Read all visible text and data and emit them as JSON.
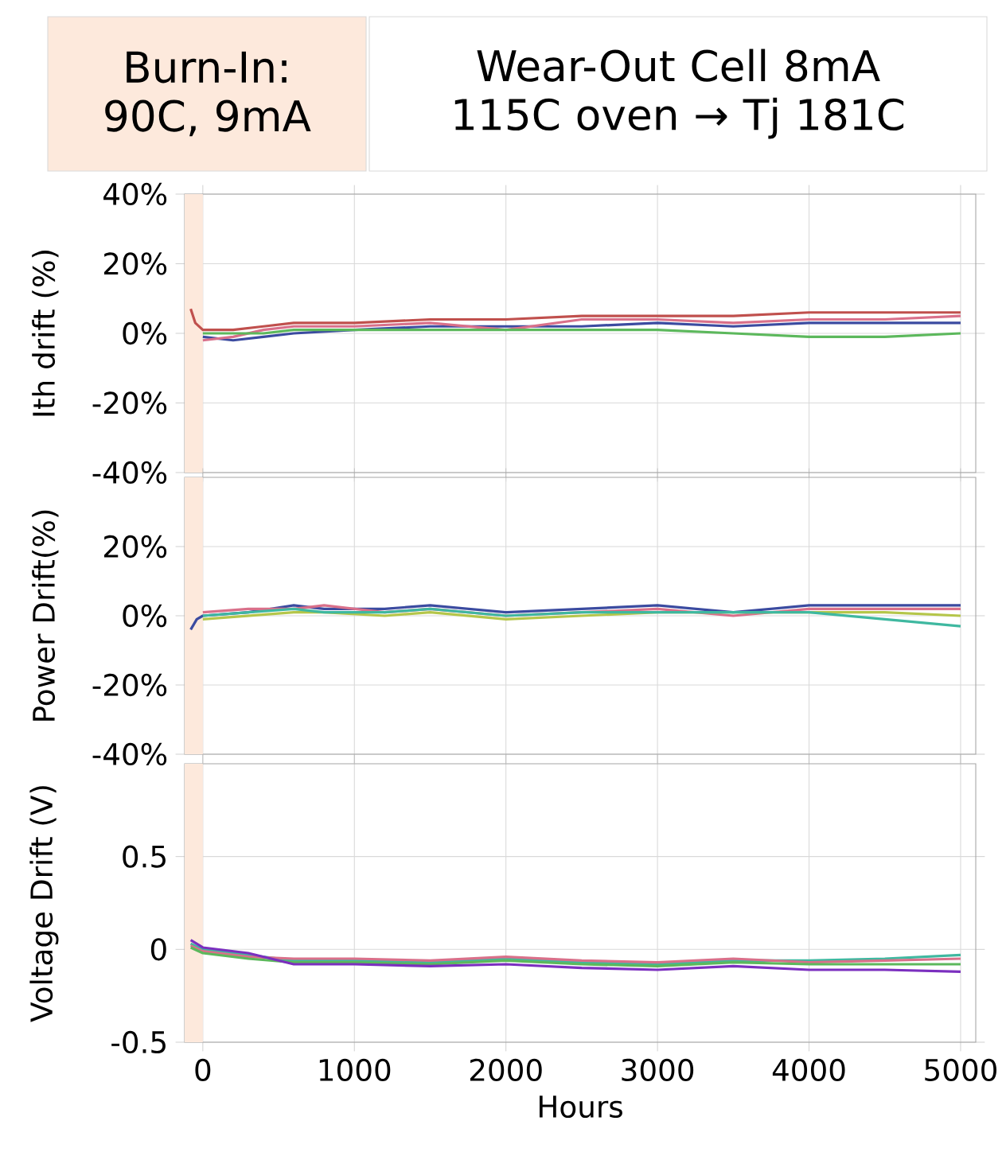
{
  "chart_data": [
    {
      "type": "line",
      "ylabel": "Ith drift (%)",
      "xlim": [
        -120,
        5100
      ],
      "xticks": [
        0,
        1000,
        2000,
        3000,
        4000,
        5000
      ],
      "ylim": [
        -40,
        40
      ],
      "yticks": [
        {
          "value": -40,
          "label": "-40%"
        },
        {
          "value": -20,
          "label": "-20%"
        },
        {
          "value": 0,
          "label": "0%"
        },
        {
          "value": 20,
          "label": "20%"
        },
        {
          "value": 40,
          "label": "40%"
        }
      ],
      "grid": true,
      "tick_labels": "y",
      "bands": [
        {
          "axis": "x",
          "from": -120,
          "to": 0,
          "color": "#fde9dc"
        }
      ],
      "annotations": [
        "Burn-In: 90C, 9mA",
        "Wear-Out Cell 8mA 115C oven → Tj 181C"
      ],
      "series": [
        {
          "color": "#c0504d",
          "x": [
            -80,
            -50,
            0,
            200,
            400,
            600,
            1000,
            1500,
            2000,
            2500,
            3000,
            3500,
            4000,
            4500,
            5000
          ],
          "values": [
            7,
            3,
            1,
            1,
            2,
            3,
            3,
            4,
            4,
            5,
            5,
            5,
            6,
            6,
            6
          ]
        },
        {
          "color": "#3b4ba0",
          "x": [
            0,
            200,
            400,
            600,
            1000,
            1500,
            2000,
            2500,
            3000,
            3500,
            4000,
            4500,
            5000
          ],
          "values": [
            -1,
            -2,
            -1,
            0,
            1,
            2,
            2,
            2,
            3,
            2,
            3,
            3,
            3
          ]
        },
        {
          "color": "#d9708a",
          "x": [
            0,
            200,
            400,
            600,
            1000,
            1500,
            2000,
            2500,
            3000,
            3500,
            4000,
            4500,
            5000
          ],
          "values": [
            -2,
            -1,
            1,
            2,
            2,
            3,
            1,
            4,
            4,
            3,
            4,
            4,
            5
          ]
        },
        {
          "color": "#5cb85c",
          "x": [
            0,
            200,
            400,
            600,
            1000,
            1500,
            2000,
            2500,
            3000,
            3500,
            4000,
            4500,
            5000
          ],
          "values": [
            0,
            0,
            0,
            1,
            1,
            1,
            1,
            1,
            1,
            0,
            -1,
            -1,
            0
          ]
        }
      ]
    },
    {
      "type": "line",
      "ylabel": "Power Drift(%)",
      "xlim": [
        -120,
        5100
      ],
      "xticks": [
        0,
        1000,
        2000,
        3000,
        4000,
        5000
      ],
      "ylim": [
        -40,
        40
      ],
      "yticks": [
        {
          "value": -40,
          "label": "-40%"
        },
        {
          "value": -20,
          "label": "-20%"
        },
        {
          "value": 0,
          "label": "0%"
        },
        {
          "value": 20,
          "label": "20%"
        }
      ],
      "grid": true,
      "tick_labels": "y",
      "bands": [
        {
          "axis": "x",
          "from": -120,
          "to": 0,
          "color": "#fde9dc"
        }
      ],
      "series": [
        {
          "color": "#3b4ba0",
          "x": [
            -80,
            -40,
            0,
            300,
            600,
            800,
            1200,
            1500,
            2000,
            2500,
            3000,
            3500,
            4000,
            4500,
            5000
          ],
          "values": [
            -4,
            -1,
            0,
            1,
            3,
            2,
            2,
            3,
            1,
            2,
            3,
            1,
            3,
            3,
            3
          ]
        },
        {
          "color": "#d9708a",
          "x": [
            0,
            300,
            600,
            800,
            1200,
            1500,
            2000,
            2500,
            3000,
            3500,
            4000,
            4500,
            5000
          ],
          "values": [
            1,
            2,
            2,
            3,
            1,
            2,
            0,
            1,
            2,
            0,
            2,
            2,
            2
          ]
        },
        {
          "color": "#b5c64a",
          "x": [
            0,
            300,
            600,
            800,
            1200,
            1500,
            2000,
            2500,
            3000,
            3500,
            4000,
            4500,
            5000
          ],
          "values": [
            -1,
            0,
            1,
            1,
            0,
            1,
            -1,
            0,
            1,
            1,
            1,
            1,
            0
          ]
        },
        {
          "color": "#3fb8a0",
          "x": [
            0,
            300,
            600,
            800,
            1200,
            1500,
            2000,
            2500,
            3000,
            3500,
            4000,
            4500,
            5000
          ],
          "values": [
            0,
            1,
            2,
            1,
            1,
            2,
            0,
            1,
            1,
            1,
            1,
            -1,
            -3
          ]
        }
      ]
    },
    {
      "type": "line",
      "ylabel": "Voltage Drift (V)",
      "xlabel": "Hours",
      "xlim": [
        -120,
        5100
      ],
      "xticks": [
        0,
        1000,
        2000,
        3000,
        4000,
        5000
      ],
      "ylim": [
        -0.5,
        1.0
      ],
      "yticks": [
        -0.5,
        0,
        0.5
      ],
      "grid": true,
      "bands": [
        {
          "axis": "x",
          "from": -120,
          "to": 0,
          "color": "#fde9dc"
        }
      ],
      "series": [
        {
          "color": "#3fb8a0",
          "x": [
            -80,
            0,
            300,
            600,
            1000,
            1500,
            2000,
            2500,
            3000,
            3500,
            4000,
            4500,
            5000
          ],
          "values": [
            0.03,
            0.0,
            -0.03,
            -0.06,
            -0.06,
            -0.07,
            -0.05,
            -0.07,
            -0.08,
            -0.06,
            -0.06,
            -0.05,
            -0.03
          ]
        },
        {
          "color": "#d9708a",
          "x": [
            -80,
            0,
            300,
            600,
            1000,
            1500,
            2000,
            2500,
            3000,
            3500,
            4000,
            4500,
            5000
          ],
          "values": [
            0.02,
            -0.01,
            -0.04,
            -0.05,
            -0.05,
            -0.06,
            -0.04,
            -0.06,
            -0.07,
            -0.05,
            -0.07,
            -0.06,
            -0.05
          ]
        },
        {
          "color": "#5cb85c",
          "x": [
            -80,
            0,
            300,
            600,
            1000,
            1500,
            2000,
            2500,
            3000,
            3500,
            4000,
            4500,
            5000
          ],
          "values": [
            0.01,
            -0.02,
            -0.05,
            -0.07,
            -0.07,
            -0.08,
            -0.06,
            -0.08,
            -0.09,
            -0.07,
            -0.08,
            -0.08,
            -0.08
          ]
        },
        {
          "color": "#7b2fbf",
          "x": [
            -80,
            0,
            300,
            600,
            1000,
            1500,
            2000,
            2500,
            3000,
            3500,
            4000,
            4500,
            5000
          ],
          "values": [
            0.05,
            0.01,
            -0.02,
            -0.08,
            -0.08,
            -0.09,
            -0.08,
            -0.1,
            -0.11,
            -0.09,
            -0.11,
            -0.11,
            -0.12
          ]
        }
      ]
    }
  ]
}
